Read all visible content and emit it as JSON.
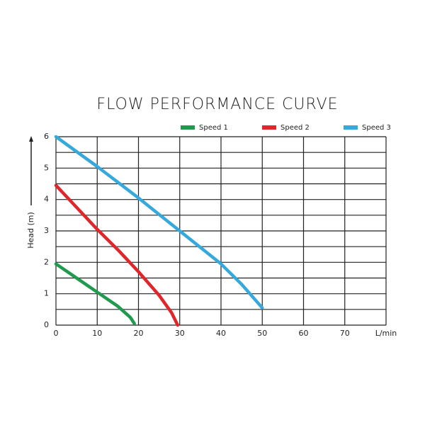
{
  "chart_data": {
    "type": "line",
    "title": "FLOW PERFORMANCE CURVE",
    "xlabel": "L/min",
    "ylabel": "Head (m)",
    "xlim": [
      0,
      80
    ],
    "xticks": [
      0,
      10,
      20,
      30,
      40,
      50,
      60,
      70
    ],
    "ylim": [
      0,
      6
    ],
    "yticks": [
      0,
      1,
      2,
      3,
      4,
      5,
      6
    ],
    "xgrid": [
      0,
      10,
      20,
      30,
      40,
      50,
      60,
      70,
      80
    ],
    "ygrid": [
      0,
      0.5,
      1,
      1.5,
      2,
      2.5,
      3,
      3.5,
      4,
      4.5,
      5,
      5.5,
      6
    ],
    "legend": "top-right",
    "series": [
      {
        "name": "Speed 1",
        "color": "#1f9a4f",
        "x": [
          0,
          5,
          10,
          15,
          18,
          19
        ],
        "values": [
          1.95,
          1.5,
          1.05,
          0.6,
          0.25,
          0.05
        ]
      },
      {
        "name": "Speed 2",
        "color": "#e0262b",
        "x": [
          0,
          5,
          10,
          15,
          20,
          25,
          28,
          29.5
        ],
        "values": [
          4.45,
          3.75,
          3.05,
          2.4,
          1.7,
          0.95,
          0.4,
          0
        ]
      },
      {
        "name": "Speed 3",
        "color": "#36a9dc",
        "x": [
          0,
          10,
          20,
          30,
          40,
          45,
          48,
          50
        ],
        "values": [
          6,
          5.05,
          4.05,
          3.0,
          1.95,
          1.3,
          0.85,
          0.55
        ]
      }
    ]
  }
}
